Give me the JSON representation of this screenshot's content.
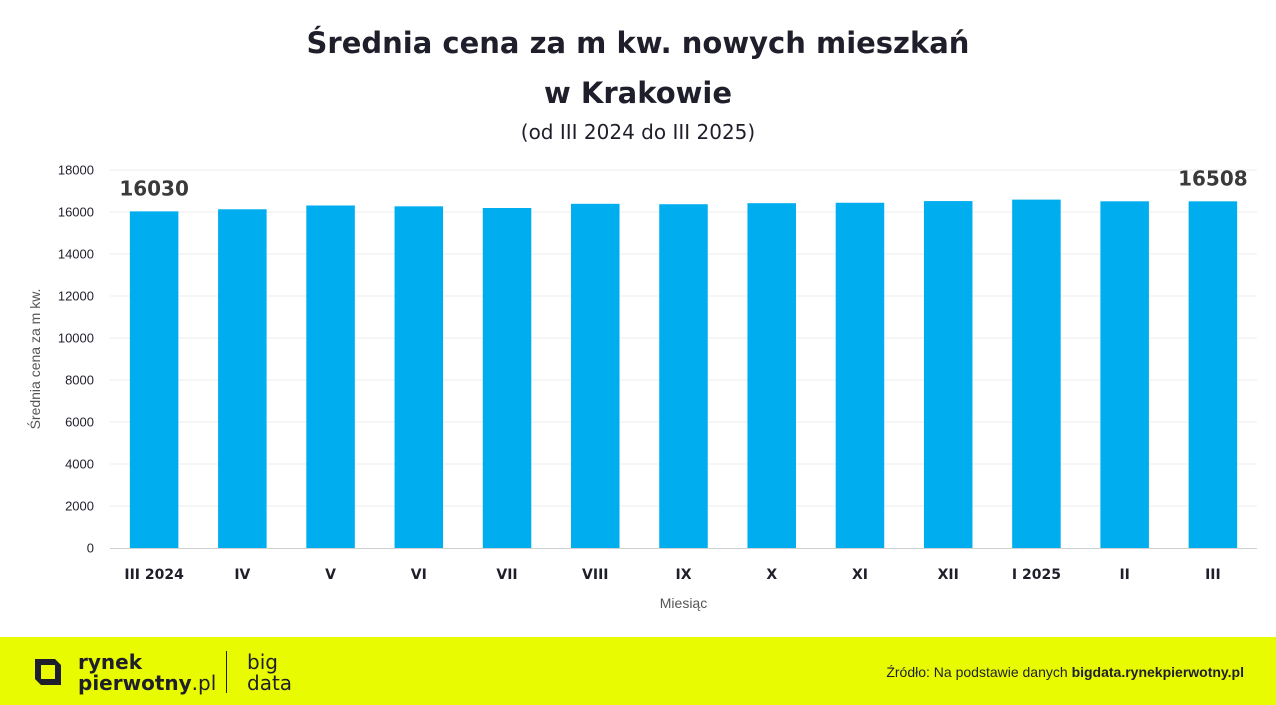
{
  "chart_data": {
    "type": "bar",
    "title": "Średnia cena za m kw. nowych mieszkań w Krakowie",
    "title_line1": "Średnia cena za m kw. nowych mieszkań",
    "title_line2": "w Krakowie",
    "subtitle": "(od III 2024 do III 2025)",
    "xlabel": "Miesiąc",
    "ylabel": "Średnia cena za m kw.",
    "categories": [
      "III 2024",
      "IV",
      "V",
      "VI",
      "VII",
      "VIII",
      "IX",
      "X",
      "XI",
      "XII",
      "I 2025",
      "II",
      "III"
    ],
    "values": [
      16030,
      16130,
      16310,
      16270,
      16190,
      16390,
      16370,
      16420,
      16440,
      16520,
      16590,
      16510,
      16508
    ],
    "data_labels": [
      {
        "index": 0,
        "text": "16030"
      },
      {
        "index": 12,
        "text": "16508"
      }
    ],
    "ylim": [
      0,
      18000
    ],
    "yticks": [
      0,
      2000,
      4000,
      6000,
      8000,
      10000,
      12000,
      14000,
      16000,
      18000
    ],
    "grid": true,
    "legend": "none",
    "bar_color": "#00aeef"
  },
  "footer": {
    "brand_line1": "rynek",
    "brand_line2": "pierwotny",
    "brand_suffix": ".pl",
    "big_line1": "big",
    "big_line2": "data",
    "source_prefix": "Źródło: Na podstawie danych ",
    "source_bold": "bigdata.rynekpierwotny.pl",
    "background_color": "#e8fb00"
  }
}
